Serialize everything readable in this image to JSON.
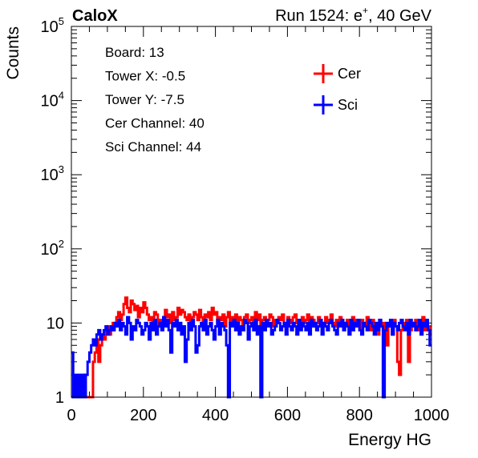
{
  "header": {
    "brand": "CaloX",
    "run_prefix": "Run 1524: e",
    "run_charge": "+",
    "run_suffix": ", 40 GeV"
  },
  "info_lines": [
    "Board: 13",
    "Tower X: -0.5",
    "Tower Y: -7.5",
    "Cer Channel: 40",
    "Sci Channel: 44"
  ],
  "chart_data": {
    "type": "line",
    "title": "",
    "xlabel": "Energy HG",
    "ylabel": "Counts",
    "xlim": [
      0,
      1000
    ],
    "ylim": [
      1,
      100000
    ],
    "y_scale": "log",
    "x_ticks": [
      0,
      200,
      400,
      600,
      800,
      1000
    ],
    "y_ticks": [
      {
        "value": 1,
        "base": "1",
        "exp": ""
      },
      {
        "value": 10,
        "base": "10",
        "exp": ""
      },
      {
        "value": 100,
        "base": "10",
        "exp": "2"
      },
      {
        "value": 1000,
        "base": "10",
        "exp": "3"
      },
      {
        "value": 10000,
        "base": "10",
        "exp": "4"
      },
      {
        "value": 100000,
        "base": "10",
        "exp": "5"
      }
    ],
    "grid": false,
    "legend_position": "top-right",
    "bin_width": 5,
    "series": [
      {
        "name": "Cer",
        "color": "#ff0000",
        "x": [
          0,
          5,
          10,
          15,
          20,
          25,
          30,
          35,
          40,
          45,
          50,
          55,
          60,
          65,
          70,
          75,
          80,
          85,
          90,
          95,
          100,
          105,
          110,
          115,
          120,
          125,
          130,
          135,
          140,
          145,
          150,
          155,
          160,
          165,
          170,
          175,
          180,
          185,
          190,
          195,
          200,
          205,
          210,
          215,
          220,
          225,
          230,
          235,
          240,
          245,
          250,
          255,
          260,
          265,
          270,
          275,
          280,
          285,
          290,
          295,
          300,
          305,
          310,
          315,
          320,
          325,
          330,
          335,
          340,
          345,
          350,
          355,
          360,
          365,
          370,
          375,
          380,
          385,
          390,
          395,
          400,
          405,
          410,
          415,
          420,
          425,
          430,
          435,
          440,
          445,
          450,
          455,
          460,
          465,
          470,
          475,
          480,
          485,
          490,
          495,
          500,
          505,
          510,
          515,
          520,
          525,
          530,
          535,
          540,
          545,
          550,
          555,
          560,
          565,
          570,
          575,
          580,
          585,
          590,
          595,
          600,
          605,
          610,
          615,
          620,
          625,
          630,
          635,
          640,
          645,
          650,
          655,
          660,
          665,
          670,
          675,
          680,
          685,
          690,
          695,
          700,
          705,
          710,
          715,
          720,
          725,
          730,
          735,
          740,
          745,
          750,
          755,
          760,
          765,
          770,
          775,
          780,
          785,
          790,
          795,
          800,
          805,
          810,
          815,
          820,
          825,
          830,
          835,
          840,
          845,
          850,
          855,
          860,
          865,
          870,
          875,
          880,
          885,
          890,
          895,
          900,
          905,
          910,
          915,
          920,
          925,
          930,
          935,
          940,
          945,
          950,
          955,
          960,
          965,
          970,
          975,
          980,
          985,
          990,
          995
        ],
        "values": [
          0,
          0,
          0,
          0,
          0,
          0,
          1,
          2,
          0,
          0,
          0,
          0,
          3,
          4,
          6,
          3,
          5,
          7,
          6,
          8,
          9,
          7,
          8,
          10,
          9,
          12,
          14,
          11,
          13,
          18,
          22,
          16,
          14,
          20,
          18,
          15,
          17,
          12,
          16,
          14,
          19,
          16,
          13,
          11,
          12,
          10,
          14,
          13,
          9,
          11,
          10,
          12,
          15,
          12,
          13,
          10,
          14,
          11,
          12,
          16,
          13,
          15,
          14,
          12,
          11,
          13,
          10,
          12,
          14,
          13,
          11,
          15,
          12,
          10,
          13,
          12,
          14,
          11,
          16,
          13,
          14,
          10,
          12,
          11,
          13,
          9,
          12,
          14,
          10,
          12,
          11,
          13,
          10,
          12,
          11,
          9,
          12,
          13,
          10,
          11,
          12,
          10,
          14,
          11,
          13,
          9,
          11,
          12,
          10,
          11,
          13,
          12,
          9,
          11,
          10,
          12,
          11,
          13,
          10,
          9,
          12,
          11,
          10,
          12,
          13,
          10,
          11,
          9,
          12,
          10,
          11,
          13,
          10,
          12,
          11,
          9,
          10,
          12,
          11,
          10,
          9,
          12,
          10,
          11,
          13,
          10,
          9,
          11,
          10,
          12,
          11,
          9,
          10,
          11,
          8,
          10,
          12,
          9,
          11,
          10,
          8,
          11,
          10,
          9,
          12,
          10,
          8,
          11,
          9,
          10,
          7,
          11,
          9,
          10,
          8,
          5,
          9,
          10,
          7,
          11,
          9,
          3,
          2,
          8,
          10,
          9,
          11,
          3,
          8,
          10,
          9,
          11,
          8,
          10,
          9,
          12,
          8,
          10,
          9,
          7
        ]
      },
      {
        "name": "Sci",
        "color": "#0000ff",
        "x": [
          0,
          5,
          10,
          15,
          20,
          25,
          30,
          35,
          40,
          45,
          50,
          55,
          60,
          65,
          70,
          75,
          80,
          85,
          90,
          95,
          100,
          105,
          110,
          115,
          120,
          125,
          130,
          135,
          140,
          145,
          150,
          155,
          160,
          165,
          170,
          175,
          180,
          185,
          190,
          195,
          200,
          205,
          210,
          215,
          220,
          225,
          230,
          235,
          240,
          245,
          250,
          255,
          260,
          265,
          270,
          275,
          280,
          285,
          290,
          295,
          300,
          305,
          310,
          315,
          320,
          325,
          330,
          335,
          340,
          345,
          350,
          355,
          360,
          365,
          370,
          375,
          380,
          385,
          390,
          395,
          400,
          405,
          410,
          415,
          420,
          425,
          430,
          435,
          440,
          445,
          450,
          455,
          460,
          465,
          470,
          475,
          480,
          485,
          490,
          495,
          500,
          505,
          510,
          515,
          520,
          525,
          530,
          535,
          540,
          545,
          550,
          555,
          560,
          565,
          570,
          575,
          580,
          585,
          590,
          595,
          600,
          605,
          610,
          615,
          620,
          625,
          630,
          635,
          640,
          645,
          650,
          655,
          660,
          665,
          670,
          675,
          680,
          685,
          690,
          695,
          700,
          705,
          710,
          715,
          720,
          725,
          730,
          735,
          740,
          745,
          750,
          755,
          760,
          765,
          770,
          775,
          780,
          785,
          790,
          795,
          800,
          805,
          810,
          815,
          820,
          825,
          830,
          835,
          840,
          845,
          850,
          855,
          860,
          865,
          870,
          875,
          880,
          885,
          890,
          895,
          900,
          905,
          910,
          915,
          920,
          925,
          930,
          935,
          940,
          945,
          950,
          955,
          960,
          965,
          970,
          975,
          980,
          985,
          990,
          995
        ],
        "values": [
          4,
          0,
          2,
          1,
          2,
          1,
          2,
          1,
          2,
          3,
          4,
          5,
          6,
          5,
          7,
          8,
          6,
          7,
          8,
          9,
          7,
          8,
          9,
          8,
          10,
          9,
          11,
          8,
          10,
          9,
          7,
          12,
          10,
          6,
          9,
          8,
          11,
          10,
          9,
          7,
          8,
          10,
          9,
          6,
          10,
          8,
          11,
          7,
          9,
          10,
          8,
          12,
          9,
          11,
          8,
          4,
          10,
          9,
          11,
          8,
          10,
          7,
          9,
          3,
          6,
          10,
          8,
          11,
          9,
          4,
          5,
          9,
          10,
          8,
          11,
          7,
          9,
          10,
          8,
          6,
          9,
          11,
          7,
          10,
          9,
          8,
          5,
          1,
          10,
          9,
          11,
          8,
          10,
          7,
          9,
          8,
          11,
          10,
          6,
          9,
          10,
          8,
          11,
          7,
          9,
          1,
          10,
          8,
          11,
          9,
          10,
          7,
          8,
          9,
          11,
          10,
          8,
          9,
          10,
          7,
          11,
          9,
          8,
          10,
          9,
          7,
          11,
          8,
          10,
          9,
          8,
          10,
          7,
          11,
          9,
          10,
          8,
          9,
          11,
          7,
          10,
          9,
          8,
          10,
          11,
          9,
          8,
          7,
          10,
          9,
          11,
          8,
          10,
          9,
          7,
          11,
          8,
          10,
          9,
          11,
          8,
          7,
          10,
          9,
          8,
          11,
          10,
          9,
          7,
          10,
          8,
          11,
          9,
          1,
          8,
          10,
          9,
          11,
          7,
          10,
          9,
          8,
          10,
          11,
          9,
          8,
          10,
          7,
          11,
          9,
          10,
          8,
          9,
          11,
          7,
          10,
          9,
          11,
          8,
          5
        ]
      }
    ]
  }
}
